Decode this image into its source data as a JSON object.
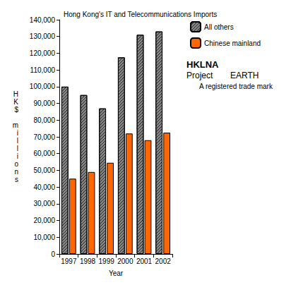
{
  "chart_data": {
    "type": "bar",
    "title": "Hong Kong's IT and Telecommunications Imports",
    "x_label": "Year",
    "y_label": "HK$ millions",
    "categories": [
      "1997",
      "1998",
      "1999",
      "2000",
      "2001",
      "2002"
    ],
    "series": [
      {
        "name": "All others",
        "color": "#8c8c8c",
        "values": [
          100000,
          95000,
          87000,
          117500,
          131000,
          133000
        ]
      },
      {
        "name": "Chinese mainland",
        "color": "#ff6600",
        "values": [
          45000,
          49000,
          54500,
          72000,
          68000,
          72500
        ]
      }
    ],
    "ylim": [
      0,
      140000
    ],
    "yticks": [
      0,
      {
        "value": 10000,
        "label": "10,000"
      },
      {
        "value": 20000,
        "label": "20,000"
      },
      {
        "value": 30000,
        "label": "30,000"
      },
      {
        "value": 40000,
        "label": "40,000"
      },
      {
        "value": 50000,
        "label": "50,000"
      },
      {
        "value": 60000,
        "label": "60,000"
      },
      {
        "value": 70000,
        "label": "70,000"
      },
      {
        "value": 80000,
        "label": "80,000"
      },
      {
        "value": 90000,
        "label": "90,000"
      },
      {
        "value": 100000,
        "label": "100,000"
      },
      {
        "value": 110000,
        "label": "110,000"
      },
      {
        "value": 120000,
        "label": "120,000"
      },
      {
        "value": 130000,
        "label": "130,000"
      },
      {
        "value": 140000,
        "label": "140,000"
      }
    ],
    "grid": false,
    "legend": "top-right",
    "annotations": [
      "HKLNA",
      "Project",
      "EARTH",
      "A registered trade mark"
    ]
  }
}
